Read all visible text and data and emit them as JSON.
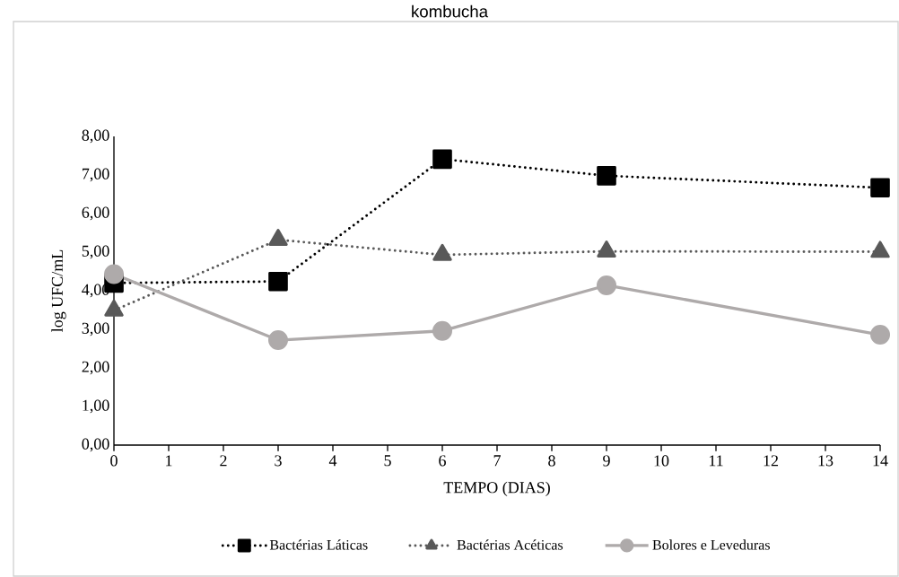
{
  "chart_data": {
    "type": "line",
    "title": "kombucha",
    "xlabel": "TEMPO (DIAS)",
    "ylabel": "log UFC/mL",
    "x": [
      0,
      3,
      6,
      9,
      14
    ],
    "series": [
      {
        "name": "Bactérias Láticas",
        "color": "#000000",
        "marker": "square",
        "line_style": "dotted",
        "values": [
          4.2,
          4.24,
          7.41,
          6.98,
          6.67
        ]
      },
      {
        "name": "Bactérias Acéticas",
        "color": "#595959",
        "marker": "triangle",
        "line_style": "dotted",
        "values": [
          3.49,
          5.32,
          4.93,
          5.02,
          5.01
        ]
      },
      {
        "name": "Bolores e Leveduras",
        "color": "#aeaaaa",
        "marker": "circle",
        "line_style": "solid",
        "values": [
          4.43,
          2.72,
          2.96,
          4.14,
          2.86
        ]
      }
    ],
    "xlim": [
      0,
      14
    ],
    "xticks": [
      0,
      1,
      2,
      3,
      4,
      5,
      6,
      7,
      8,
      9,
      10,
      11,
      12,
      13,
      14
    ],
    "ylim": [
      0,
      8
    ],
    "yticks": [
      {
        "value": 0,
        "label": "0,00"
      },
      {
        "value": 1,
        "label": "1,00"
      },
      {
        "value": 2,
        "label": "2,00"
      },
      {
        "value": 3,
        "label": "3,00"
      },
      {
        "value": 4,
        "label": "4,00"
      },
      {
        "value": 5,
        "label": "5,00"
      },
      {
        "value": 6,
        "label": "6,00"
      },
      {
        "value": 7,
        "label": "7,00"
      },
      {
        "value": 8,
        "label": "8,00"
      }
    ],
    "grid": false,
    "legend": "bottom"
  }
}
